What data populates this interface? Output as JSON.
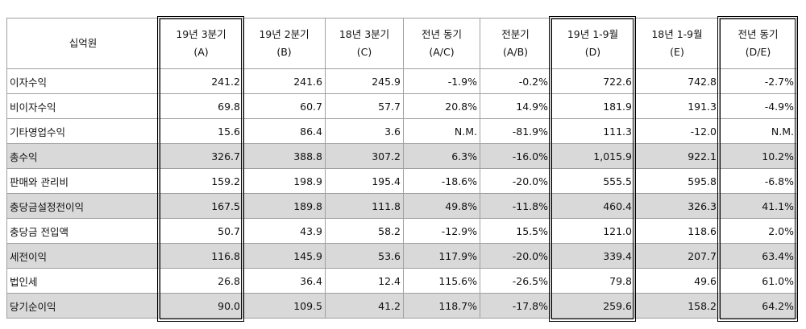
{
  "header": {
    "unit": "십억원",
    "columns": [
      {
        "line1": "19년 3분기",
        "line2": "(A)"
      },
      {
        "line1": "19년 2분기",
        "line2": "(B)"
      },
      {
        "line1": "18년 3분기",
        "line2": "(C)"
      },
      {
        "line1": "전년 동기",
        "line2": "(A/C)"
      },
      {
        "line1": "전분기",
        "line2": "(A/B)"
      },
      {
        "line1": "19년 1-9월",
        "line2": "(D)"
      },
      {
        "line1": "18년 1-9월",
        "line2": "(E)"
      },
      {
        "line1": "전년 동기",
        "line2": "(D/E)"
      }
    ]
  },
  "rows": [
    {
      "label": "이자수익",
      "highlighted": false,
      "values": [
        "241.2",
        "241.6",
        "245.9",
        "-1.9%",
        "-0.2%",
        "722.6",
        "742.8",
        "-2.7%"
      ]
    },
    {
      "label": "비이자수익",
      "highlighted": false,
      "values": [
        "69.8",
        "60.7",
        "57.7",
        "20.8%",
        "14.9%",
        "181.9",
        "191.3",
        "-4.9%"
      ]
    },
    {
      "label": "기타영업수익",
      "highlighted": false,
      "values": [
        "15.6",
        "86.4",
        "3.6",
        "N.M.",
        "-81.9%",
        "111.3",
        "-12.0",
        "N.M."
      ]
    },
    {
      "label": "총수익",
      "highlighted": true,
      "values": [
        "326.7",
        "388.8",
        "307.2",
        "6.3%",
        "-16.0%",
        "1,015.9",
        "922.1",
        "10.2%"
      ]
    },
    {
      "label": "판매와 관리비",
      "highlighted": false,
      "values": [
        "159.2",
        "198.9",
        "195.4",
        "-18.6%",
        "-20.0%",
        "555.5",
        "595.8",
        "-6.8%"
      ]
    },
    {
      "label": "충당금설정전이익",
      "highlighted": true,
      "values": [
        "167.5",
        "189.8",
        "111.8",
        "49.8%",
        "-11.8%",
        "460.4",
        "326.3",
        "41.1%"
      ]
    },
    {
      "label": "충당금 전입액",
      "highlighted": false,
      "values": [
        "50.7",
        "43.9",
        "58.2",
        "-12.9%",
        "15.5%",
        "121.0",
        "118.6",
        "2.0%"
      ]
    },
    {
      "label": "세전이익",
      "highlighted": true,
      "values": [
        "116.8",
        "145.9",
        "53.6",
        "117.9%",
        "-20.0%",
        "339.4",
        "207.7",
        "63.4%"
      ]
    },
    {
      "label": "법인세",
      "highlighted": false,
      "values": [
        "26.8",
        "36.4",
        "12.4",
        "115.6%",
        "-26.5%",
        "79.8",
        "49.6",
        "61.0%"
      ]
    },
    {
      "label": "당기순이익",
      "highlighted": true,
      "values": [
        "90.0",
        "109.5",
        "41.2",
        "118.7%",
        "-17.8%",
        "259.6",
        "158.2",
        "64.2%"
      ]
    }
  ]
}
